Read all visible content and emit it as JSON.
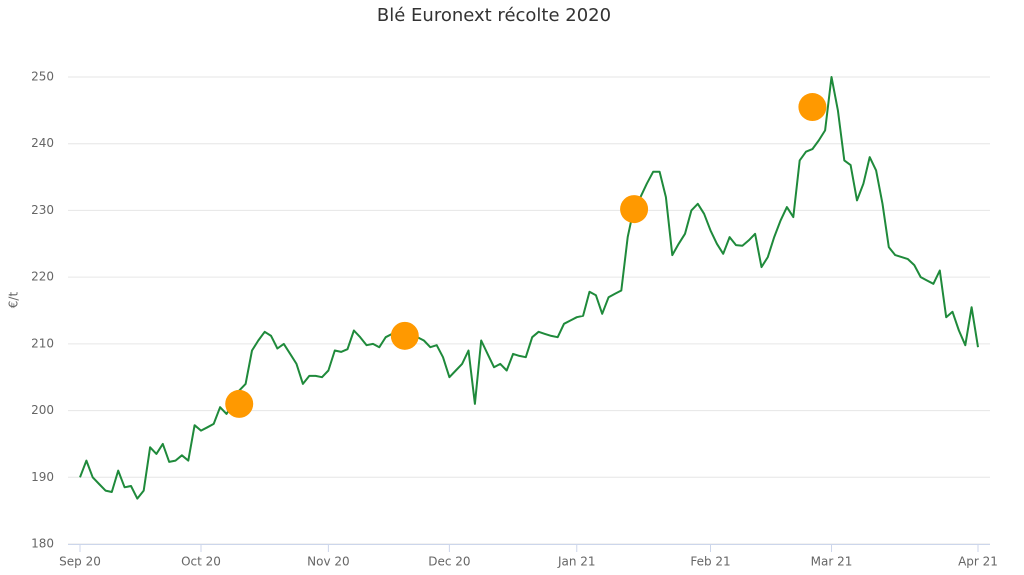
{
  "chart_data": {
    "type": "line",
    "title": "Blé Euronext récolte 2020",
    "y_label": "€/t",
    "categories": [
      "Sep 20",
      null,
      null,
      null,
      null,
      null,
      null,
      null,
      null,
      null,
      null,
      null,
      null,
      null,
      null,
      null,
      null,
      null,
      null,
      "Oct 20",
      null,
      null,
      null,
      null,
      null,
      null,
      null,
      null,
      null,
      null,
      null,
      null,
      null,
      null,
      null,
      null,
      null,
      null,
      null,
      "Nov 20",
      null,
      null,
      null,
      null,
      null,
      null,
      null,
      null,
      null,
      null,
      null,
      null,
      null,
      null,
      null,
      null,
      null,
      null,
      "Dec 20",
      null,
      null,
      null,
      null,
      null,
      null,
      null,
      null,
      null,
      null,
      null,
      null,
      null,
      null,
      null,
      null,
      null,
      null,
      null,
      "Jan 21",
      null,
      null,
      null,
      null,
      null,
      null,
      null,
      null,
      null,
      null,
      null,
      null,
      null,
      null,
      null,
      null,
      null,
      null,
      null,
      null,
      "Feb 21",
      null,
      null,
      null,
      null,
      null,
      null,
      null,
      null,
      null,
      null,
      null,
      null,
      null,
      null,
      null,
      null,
      null,
      null,
      "Mar 21",
      null,
      null,
      null,
      null,
      null,
      null,
      null,
      null,
      null,
      null,
      null,
      null,
      null,
      null,
      null,
      null,
      null,
      null,
      null,
      null,
      null,
      null,
      "Apr 21"
    ],
    "series": [
      {
        "type": "line",
        "color": "#1f8a3b",
        "values": [
          190,
          192.5,
          190,
          189,
          188,
          187.8,
          191,
          188.5,
          188.7,
          186.8,
          188,
          194.5,
          193.5,
          195,
          192.3,
          192.5,
          193.3,
          192.5,
          197.8,
          197,
          197.5,
          198,
          200.5,
          199.5,
          201,
          203,
          204,
          209,
          210.5,
          211.8,
          211.2,
          209.3,
          210,
          208.5,
          207,
          204,
          205.2,
          205.2,
          205,
          206,
          209,
          208.8,
          209.2,
          212,
          211,
          209.8,
          210,
          209.5,
          211,
          211.5,
          212.8,
          211,
          211.5,
          211,
          210.5,
          209.5,
          209.8,
          208,
          205,
          206,
          207,
          209,
          201,
          210.5,
          208.5,
          206.5,
          207,
          206,
          208.5,
          208.2,
          208,
          211,
          211.8,
          211.5,
          211.2,
          211,
          213,
          213.5,
          214,
          214.2,
          217.8,
          217.3,
          214.5,
          217,
          217.5,
          218,
          226,
          230.5,
          232,
          234,
          235.8,
          235.8,
          232,
          223.3,
          225,
          226.5,
          230,
          231,
          229.5,
          227,
          225,
          223.5,
          226,
          224.8,
          224.7,
          225.5,
          226.5,
          221.5,
          223,
          226,
          228.5,
          230.5,
          229,
          237.5,
          238.8,
          239.2,
          240.5,
          242,
          250,
          245,
          237.5,
          236.8,
          231.5,
          234,
          238,
          236,
          231,
          224.5,
          223.3,
          223,
          222.7,
          221.8,
          220,
          219.5,
          219,
          221,
          214,
          214.8,
          212,
          209.8,
          215.5,
          209.5
        ]
      },
      {
        "type": "scatter",
        "color": "#ff9900",
        "values": [
          null,
          null,
          null,
          null,
          null,
          null,
          null,
          null,
          null,
          null,
          null,
          null,
          null,
          null,
          null,
          null,
          null,
          null,
          null,
          null,
          null,
          null,
          null,
          null,
          null,
          201,
          null,
          null,
          null,
          null,
          null,
          null,
          null,
          null,
          null,
          null,
          null,
          null,
          null,
          null,
          null,
          null,
          null,
          null,
          null,
          null,
          null,
          null,
          null,
          null,
          null,
          211.2,
          null,
          null,
          null,
          null,
          null,
          null,
          null,
          null,
          null,
          null,
          null,
          null,
          null,
          null,
          null,
          null,
          null,
          null,
          null,
          null,
          null,
          null,
          null,
          null,
          null,
          null,
          null,
          null,
          null,
          null,
          null,
          null,
          null,
          null,
          null,
          230.2,
          null,
          null,
          null,
          null,
          null,
          null,
          null,
          null,
          null,
          null,
          null,
          null,
          null,
          null,
          null,
          null,
          null,
          null,
          null,
          null,
          null,
          null,
          null,
          null,
          null,
          null,
          null,
          245.5,
          null,
          null,
          null,
          null,
          null,
          null,
          null,
          null,
          null,
          null,
          null,
          null,
          null,
          null,
          null,
          null,
          null,
          null,
          null,
          null,
          null,
          null,
          null,
          null,
          null,
          null
        ]
      }
    ],
    "ylim": [
      180,
      250
    ],
    "yticks": [
      180,
      190,
      200,
      210,
      220,
      230,
      240,
      250
    ],
    "grid": true
  }
}
